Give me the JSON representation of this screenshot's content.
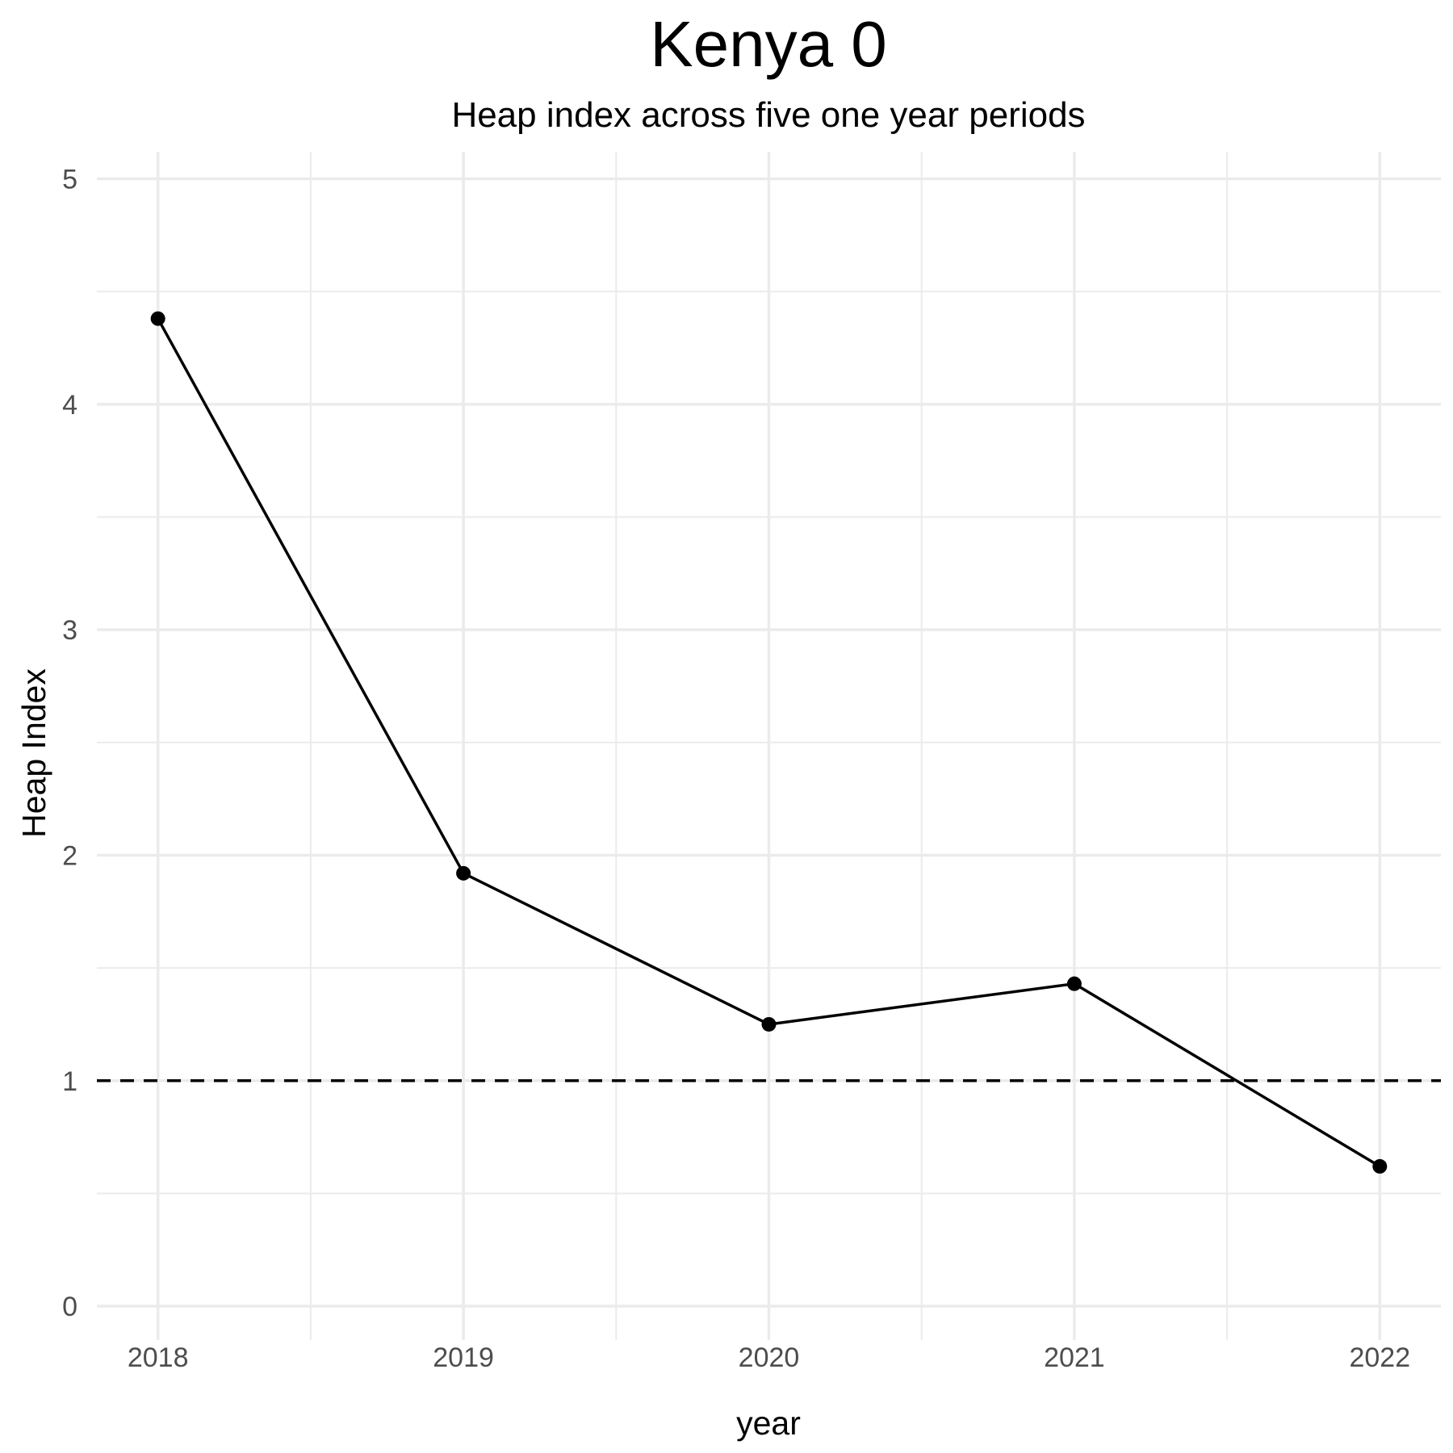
{
  "chart_data": {
    "type": "line",
    "title": "Kenya 0",
    "subtitle": "Heap index across five one year periods",
    "xlabel": "year",
    "ylabel": "Heap Index",
    "x": [
      2018,
      2019,
      2020,
      2021,
      2022
    ],
    "x_tick_labels": [
      "2018",
      "2019",
      "2020",
      "2021",
      "2022"
    ],
    "series": [
      {
        "values": [
          4.38,
          1.92,
          1.25,
          1.43,
          0.62
        ],
        "color": "#000000"
      }
    ],
    "reference_line": {
      "y": 1,
      "style": "dashed",
      "color": "#000000"
    },
    "ylim": [
      -0.15,
      5.12
    ],
    "xlim": [
      2017.8,
      2022.2
    ],
    "y_ticks": [
      0,
      1,
      2,
      3,
      4,
      5
    ],
    "y_tick_labels": [
      "0",
      "1",
      "2",
      "3",
      "4",
      "5"
    ],
    "grid": true,
    "legend": "none"
  }
}
